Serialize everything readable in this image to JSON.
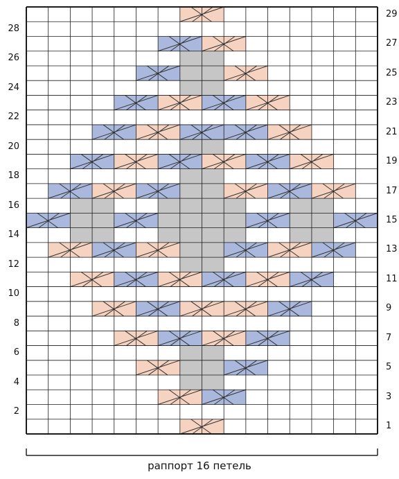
{
  "chart": {
    "rows": 29,
    "cols": 16,
    "colors": {
      "background": "#ffffff",
      "grid": "#1a1a1a",
      "pink": "#f6d2c0",
      "blue": "#a9b8dc",
      "gray": "#c6c6c6",
      "cross": "#333333"
    },
    "cables": [
      {
        "row": 1,
        "col": 8,
        "len": 2,
        "color": "pink"
      },
      {
        "row": 3,
        "col": 7,
        "len": 2,
        "color": "pink"
      },
      {
        "row": 3,
        "col": 9,
        "len": 2,
        "color": "blue"
      },
      {
        "row": 5,
        "col": 6,
        "len": 2,
        "color": "pink"
      },
      {
        "row": 5,
        "col": 10,
        "len": 2,
        "color": "blue"
      },
      {
        "row": 7,
        "col": 5,
        "len": 2,
        "color": "pink"
      },
      {
        "row": 7,
        "col": 7,
        "len": 2,
        "color": "blue"
      },
      {
        "row": 7,
        "col": 9,
        "len": 2,
        "color": "pink"
      },
      {
        "row": 7,
        "col": 11,
        "len": 2,
        "color": "blue"
      },
      {
        "row": 9,
        "col": 4,
        "len": 2,
        "color": "pink"
      },
      {
        "row": 9,
        "col": 6,
        "len": 2,
        "color": "blue"
      },
      {
        "row": 9,
        "col": 8,
        "len": 2,
        "color": "pink"
      },
      {
        "row": 9,
        "col": 10,
        "len": 2,
        "color": "pink"
      },
      {
        "row": 9,
        "col": 12,
        "len": 2,
        "color": "blue"
      },
      {
        "row": 11,
        "col": 3,
        "len": 2,
        "color": "pink"
      },
      {
        "row": 11,
        "col": 5,
        "len": 2,
        "color": "blue"
      },
      {
        "row": 11,
        "col": 7,
        "len": 2,
        "color": "pink"
      },
      {
        "row": 11,
        "col": 9,
        "len": 2,
        "color": "blue"
      },
      {
        "row": 11,
        "col": 11,
        "len": 2,
        "color": "pink"
      },
      {
        "row": 11,
        "col": 13,
        "len": 2,
        "color": "blue"
      },
      {
        "row": 13,
        "col": 2,
        "len": 2,
        "color": "pink"
      },
      {
        "row": 13,
        "col": 4,
        "len": 2,
        "color": "blue"
      },
      {
        "row": 13,
        "col": 6,
        "len": 2,
        "color": "pink"
      },
      {
        "row": 13,
        "col": 10,
        "len": 2,
        "color": "blue"
      },
      {
        "row": 13,
        "col": 12,
        "len": 2,
        "color": "pink"
      },
      {
        "row": 13,
        "col": 14,
        "len": 2,
        "color": "blue"
      },
      {
        "row": 15,
        "col": 1,
        "len": 2,
        "color": "blue"
      },
      {
        "row": 15,
        "col": 5,
        "len": 2,
        "color": "blue"
      },
      {
        "row": 15,
        "col": 11,
        "len": 2,
        "color": "blue"
      },
      {
        "row": 15,
        "col": 15,
        "len": 2,
        "color": "blue"
      },
      {
        "row": 17,
        "col": 2,
        "len": 2,
        "color": "blue"
      },
      {
        "row": 17,
        "col": 4,
        "len": 2,
        "color": "pink"
      },
      {
        "row": 17,
        "col": 6,
        "len": 2,
        "color": "blue"
      },
      {
        "row": 17,
        "col": 10,
        "len": 2,
        "color": "pink"
      },
      {
        "row": 17,
        "col": 12,
        "len": 2,
        "color": "blue"
      },
      {
        "row": 17,
        "col": 14,
        "len": 2,
        "color": "pink"
      },
      {
        "row": 19,
        "col": 3,
        "len": 2,
        "color": "blue"
      },
      {
        "row": 19,
        "col": 5,
        "len": 2,
        "color": "pink"
      },
      {
        "row": 19,
        "col": 7,
        "len": 2,
        "color": "blue"
      },
      {
        "row": 19,
        "col": 9,
        "len": 2,
        "color": "pink"
      },
      {
        "row": 19,
        "col": 11,
        "len": 2,
        "color": "blue"
      },
      {
        "row": 19,
        "col": 13,
        "len": 2,
        "color": "pink"
      },
      {
        "row": 21,
        "col": 4,
        "len": 2,
        "color": "blue"
      },
      {
        "row": 21,
        "col": 6,
        "len": 2,
        "color": "pink"
      },
      {
        "row": 21,
        "col": 8,
        "len": 2,
        "color": "blue"
      },
      {
        "row": 21,
        "col": 10,
        "len": 2,
        "color": "blue"
      },
      {
        "row": 21,
        "col": 12,
        "len": 2,
        "color": "pink"
      },
      {
        "row": 23,
        "col": 5,
        "len": 2,
        "color": "blue"
      },
      {
        "row": 23,
        "col": 7,
        "len": 2,
        "color": "pink"
      },
      {
        "row": 23,
        "col": 9,
        "len": 2,
        "color": "blue"
      },
      {
        "row": 23,
        "col": 11,
        "len": 2,
        "color": "pink"
      },
      {
        "row": 25,
        "col": 6,
        "len": 2,
        "color": "blue"
      },
      {
        "row": 25,
        "col": 10,
        "len": 2,
        "color": "pink"
      },
      {
        "row": 27,
        "col": 7,
        "len": 2,
        "color": "blue"
      },
      {
        "row": 27,
        "col": 9,
        "len": 2,
        "color": "pink"
      },
      {
        "row": 29,
        "col": 8,
        "len": 2,
        "color": "pink"
      }
    ],
    "gray_blocks": [
      {
        "row": 4,
        "col": 8,
        "rows": 3,
        "cols": 2
      },
      {
        "row": 12,
        "col": 8,
        "rows": 9,
        "cols": 2
      },
      {
        "row": 14,
        "col": 7,
        "rows": 3,
        "cols": 4
      },
      {
        "row": 14,
        "col": 3,
        "rows": 3,
        "cols": 2
      },
      {
        "row": 14,
        "col": 13,
        "rows": 3,
        "cols": 2
      },
      {
        "row": 24,
        "col": 8,
        "rows": 3,
        "cols": 2
      }
    ]
  },
  "right_labels": [
    "1",
    "3",
    "5",
    "7",
    "9",
    "11",
    "13",
    "15",
    "17",
    "19",
    "21",
    "23",
    "25",
    "27",
    "29"
  ],
  "left_labels": [
    "2",
    "4",
    "6",
    "8",
    "10",
    "12",
    "14",
    "16",
    "18",
    "20",
    "22",
    "24",
    "26",
    "28"
  ],
  "caption": "раппорт 16 петель"
}
